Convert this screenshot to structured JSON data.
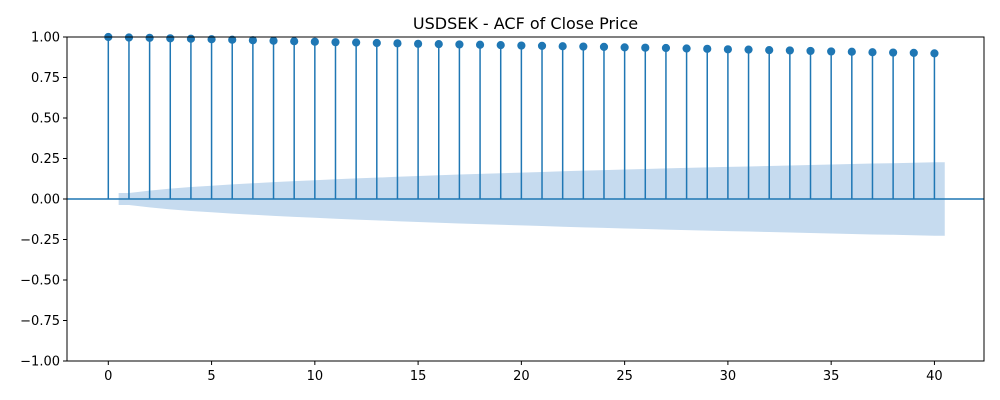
{
  "chart_data": {
    "type": "stem",
    "title": "USDSEK - ACF of Close Price",
    "xlabel": "",
    "ylabel": "",
    "xlim": [
      -2,
      42.4
    ],
    "ylim": [
      -1.0,
      1.0
    ],
    "xticks": [
      0,
      5,
      10,
      15,
      20,
      25,
      30,
      35,
      40
    ],
    "xtick_labels": [
      "0",
      "5",
      "10",
      "15",
      "20",
      "25",
      "30",
      "35",
      "40"
    ],
    "yticks": [
      1.0,
      0.75,
      0.5,
      0.25,
      0.0,
      -0.25,
      -0.5,
      -0.75,
      -1.0
    ],
    "ytick_labels": [
      "1.00",
      "0.75",
      "0.50",
      "0.25",
      "0.00",
      "−0.25",
      "−0.50",
      "−0.75",
      "−1.00"
    ],
    "grid": false,
    "lags": [
      0,
      1,
      2,
      3,
      4,
      5,
      6,
      7,
      8,
      9,
      10,
      11,
      12,
      13,
      14,
      15,
      16,
      17,
      18,
      19,
      20,
      21,
      22,
      23,
      24,
      25,
      26,
      27,
      28,
      29,
      30,
      31,
      32,
      33,
      34,
      35,
      36,
      37,
      38,
      39,
      40
    ],
    "values": [
      1.0,
      0.997,
      0.995,
      0.992,
      0.989,
      0.986,
      0.983,
      0.98,
      0.977,
      0.974,
      0.971,
      0.968,
      0.966,
      0.963,
      0.961,
      0.958,
      0.956,
      0.954,
      0.952,
      0.95,
      0.947,
      0.945,
      0.943,
      0.941,
      0.939,
      0.936,
      0.934,
      0.932,
      0.929,
      0.927,
      0.924,
      0.922,
      0.919,
      0.917,
      0.914,
      0.911,
      0.909,
      0.906,
      0.904,
      0.902,
      0.899
    ],
    "confidence_band": {
      "lags": [
        0.5,
        1,
        2,
        3,
        4,
        5,
        6,
        7,
        8,
        9,
        10,
        11,
        12,
        13,
        14,
        15,
        16,
        17,
        18,
        19,
        20,
        21,
        22,
        23,
        24,
        25,
        26,
        27,
        28,
        29,
        30,
        31,
        32,
        33,
        34,
        35,
        36,
        37,
        38,
        39,
        40,
        40.5
      ],
      "upper": [
        0.037,
        0.037,
        0.052,
        0.064,
        0.074,
        0.082,
        0.09,
        0.097,
        0.104,
        0.11,
        0.116,
        0.122,
        0.127,
        0.132,
        0.137,
        0.142,
        0.147,
        0.151,
        0.155,
        0.159,
        0.163,
        0.167,
        0.171,
        0.175,
        0.178,
        0.182,
        0.185,
        0.189,
        0.192,
        0.195,
        0.198,
        0.201,
        0.204,
        0.207,
        0.21,
        0.213,
        0.216,
        0.219,
        0.221,
        0.224,
        0.227,
        0.227
      ],
      "color": "#c6dbef"
    },
    "colors": {
      "stem": "#1f77b4",
      "marker": "#1f77b4",
      "zero_line": "#1f77b4",
      "band": "#c6dbef"
    }
  }
}
